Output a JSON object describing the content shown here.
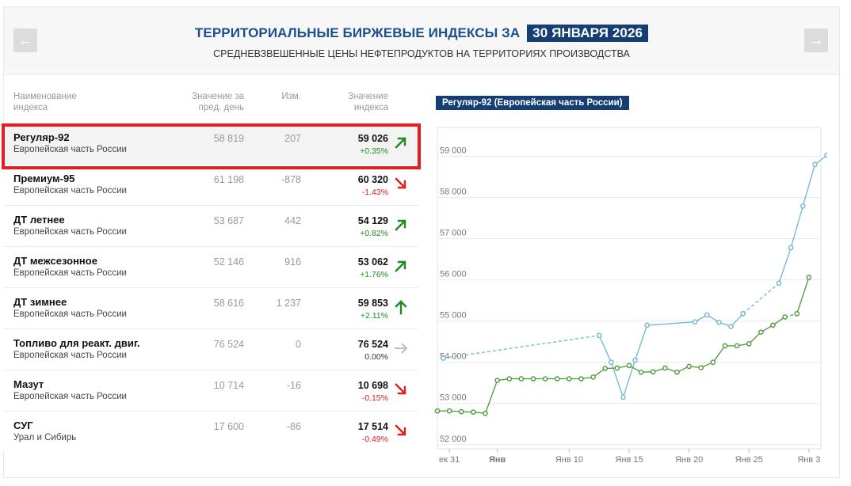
{
  "header": {
    "prev_label": "←",
    "next_label": "→",
    "title": "ТЕРРИТОРИАЛЬНЫЕ БИРЖЕВЫЕ ИНДЕКСЫ ЗА",
    "date": "30 ЯНВАРЯ 2026",
    "subtitle": "СРЕДНЕВЗВЕШЕННЫЕ ЦЕНЫ НЕФТЕПРОДУКТОВ НА ТЕРРИТОРИЯХ ПРОИЗВОДСТВА"
  },
  "table": {
    "columns": {
      "name_1": "Наименование",
      "name_2": "индекса",
      "prev_1": "Значение за",
      "prev_2": "пред. день",
      "chg": "Изм.",
      "val_1": "Значение",
      "val_2": "индекса"
    },
    "rows": [
      {
        "name": "Регуляр-92",
        "region": "Европейская часть России",
        "prev": "58 819",
        "chg": "207",
        "value": "59 026",
        "pct": "+0.35%",
        "trend": "up"
      },
      {
        "name": "Премиум-95",
        "region": "Европейская часть России",
        "prev": "61 198",
        "chg": "-878",
        "value": "60 320",
        "pct": "-1.43%",
        "trend": "down"
      },
      {
        "name": "ДТ летнее",
        "region": "Европейская часть России",
        "prev": "53 687",
        "chg": "442",
        "value": "54 129",
        "pct": "+0.82%",
        "trend": "up"
      },
      {
        "name": "ДТ межсезонное",
        "region": "Европейская часть России",
        "prev": "52 146",
        "chg": "916",
        "value": "53 062",
        "pct": "+1.76%",
        "trend": "up"
      },
      {
        "name": "ДТ зимнее",
        "region": "Европейская часть России",
        "prev": "58 616",
        "chg": "1 237",
        "value": "59 853",
        "pct": "+2.11%",
        "trend": "strong-up"
      },
      {
        "name": "Топливо для реакт. двиг.",
        "region": "Европейская часть России",
        "prev": "76 524",
        "chg": "0",
        "value": "76 524",
        "pct": "0.00%",
        "trend": "flat"
      },
      {
        "name": "Мазут",
        "region": "Европейская часть России",
        "prev": "10 714",
        "chg": "-16",
        "value": "10 698",
        "pct": "-0.15%",
        "trend": "down"
      },
      {
        "name": "СУГ",
        "region": "Урал и Сибирь",
        "prev": "17 600",
        "chg": "-86",
        "value": "17 514",
        "pct": "-0.49%",
        "trend": "down"
      }
    ]
  },
  "colors": {
    "up": "#1f8a1f",
    "down": "#e02020",
    "flat": "#bbbbbb",
    "series_blue": "#6fb4d9",
    "series_green": "#4c9a3a",
    "accent": "#153f74"
  },
  "chart_title": "Регуляр-92 (Европейская часть России)",
  "chart_data": {
    "type": "line",
    "ylim": [
      51900,
      59700
    ],
    "yticks": [
      52000,
      53000,
      54000,
      55000,
      56000,
      57000,
      58000,
      59000
    ],
    "ytick_labels": [
      "52 000",
      "53 000",
      "54 000",
      "55 000",
      "56 000",
      "57 000",
      "58 000",
      "59 000"
    ],
    "x_range": [
      -1,
      31
    ],
    "xticks": [
      {
        "day": 0,
        "label": "ек 31",
        "bold": false
      },
      {
        "day": 4,
        "label": "Янв",
        "bold": true
      },
      {
        "day": 10,
        "label": "Янв 10",
        "bold": false
      },
      {
        "day": 15,
        "label": "Янв 15",
        "bold": false
      },
      {
        "day": 20,
        "label": "Янв 20",
        "bold": false
      },
      {
        "day": 25,
        "label": "Янв 25",
        "bold": false
      },
      {
        "day": 30,
        "label": "Янв 3",
        "bold": false
      }
    ],
    "series": [
      {
        "values_note": "",
        "color_key": "series_blue",
        "points": [
          [
            -0.5,
            54100
          ],
          [
            12.5,
            54650
          ],
          [
            13.5,
            54000
          ],
          [
            14.5,
            53150
          ],
          [
            15.5,
            54050
          ],
          [
            16.5,
            54900
          ],
          [
            20.5,
            54980
          ],
          [
            21.5,
            55150
          ],
          [
            22.5,
            54970
          ],
          [
            23.5,
            54870
          ],
          [
            24.5,
            55180
          ],
          [
            27.5,
            55920
          ],
          [
            28.5,
            56780
          ],
          [
            29.5,
            57790
          ],
          [
            30.5,
            58800
          ],
          [
            31.5,
            59026
          ]
        ],
        "dashed_segments": [
          [
            0,
            1
          ],
          [
            10,
            11
          ]
        ]
      },
      {
        "values_note": "",
        "color_key": "series_green",
        "points": [
          [
            -1,
            52820
          ],
          [
            0,
            52820
          ],
          [
            1,
            52800
          ],
          [
            2,
            52790
          ],
          [
            3,
            52760
          ],
          [
            4,
            53560
          ],
          [
            5,
            53600
          ],
          [
            6,
            53600
          ],
          [
            7,
            53600
          ],
          [
            8,
            53600
          ],
          [
            9,
            53600
          ],
          [
            10,
            53600
          ],
          [
            11,
            53600
          ],
          [
            12,
            53640
          ],
          [
            13,
            53850
          ],
          [
            14,
            53860
          ],
          [
            15,
            53920
          ],
          [
            16,
            53760
          ],
          [
            17,
            53770
          ],
          [
            18,
            53860
          ],
          [
            19,
            53760
          ],
          [
            20,
            53900
          ],
          [
            21,
            53870
          ],
          [
            22,
            54000
          ],
          [
            23,
            54400
          ],
          [
            24,
            54400
          ],
          [
            25,
            54450
          ],
          [
            26,
            54730
          ],
          [
            27,
            54900
          ],
          [
            28,
            55100
          ],
          [
            29,
            55180
          ],
          [
            30,
            56060
          ]
        ],
        "dashed_segments": [
          [
            29,
            30
          ]
        ]
      }
    ]
  }
}
